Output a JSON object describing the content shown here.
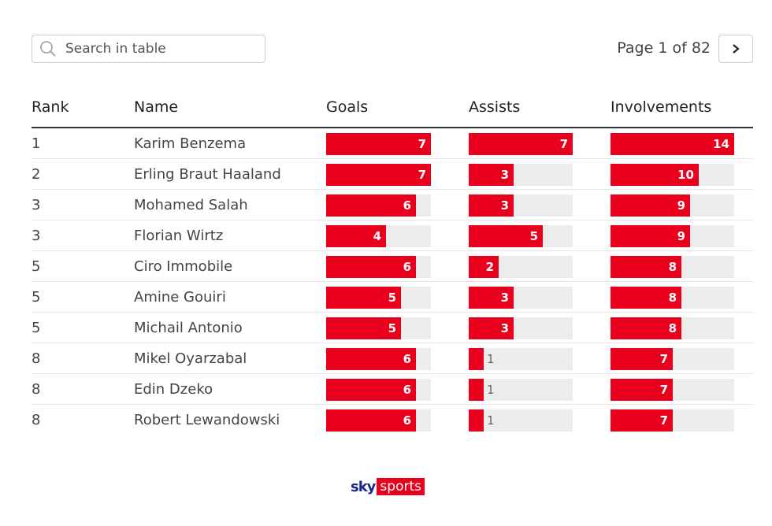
{
  "search": {
    "placeholder": "Search in table"
  },
  "pager": {
    "label": "Page 1 of 82"
  },
  "columns": {
    "rank": "Rank",
    "name": "Name",
    "goals": "Goals",
    "assists": "Assists",
    "involvements": "Involvements"
  },
  "scale": {
    "goals_max": 7,
    "assists_max": 7,
    "involvements_max": 14
  },
  "rows": [
    {
      "rank": "1",
      "name": "Karim Benzema",
      "goals": 7,
      "assists": 7,
      "involvements": 14
    },
    {
      "rank": "2",
      "name": "Erling Braut Haaland",
      "goals": 7,
      "assists": 3,
      "involvements": 10
    },
    {
      "rank": "3",
      "name": "Mohamed Salah",
      "goals": 6,
      "assists": 3,
      "involvements": 9
    },
    {
      "rank": "3",
      "name": "Florian Wirtz",
      "goals": 4,
      "assists": 5,
      "involvements": 9
    },
    {
      "rank": "5",
      "name": "Ciro Immobile",
      "goals": 6,
      "assists": 2,
      "involvements": 8
    },
    {
      "rank": "5",
      "name": "Amine Gouiri",
      "goals": 5,
      "assists": 3,
      "involvements": 8
    },
    {
      "rank": "5",
      "name": "Michail Antonio",
      "goals": 5,
      "assists": 3,
      "involvements": 8
    },
    {
      "rank": "8",
      "name": "Mikel Oyarzabal",
      "goals": 6,
      "assists": 1,
      "involvements": 7
    },
    {
      "rank": "8",
      "name": "Edin Dzeko",
      "goals": 6,
      "assists": 1,
      "involvements": 7
    },
    {
      "rank": "8",
      "name": "Robert Lewandowski",
      "goals": 6,
      "assists": 1,
      "involvements": 7
    }
  ],
  "logo": {
    "sky": "sky",
    "sports": "sports"
  },
  "colors": {
    "bar": "#e8001c",
    "track": "#ececec",
    "brand_blue": "#1a2a8c"
  },
  "icons": {
    "search": "search-icon",
    "next": "chevron-right-icon"
  }
}
